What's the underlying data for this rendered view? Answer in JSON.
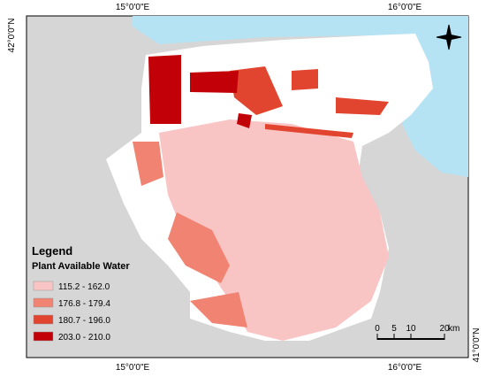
{
  "map": {
    "coordinate_labels": {
      "top": [
        "15°0'0\"E",
        "16°0'0\"E"
      ],
      "bottom": [
        "15°0'0\"E",
        "16°0'0\"E"
      ],
      "left": "42°0'0\"N",
      "right": "41°0'0\"N"
    },
    "legend": {
      "title": "Legend",
      "subtitle": "Plant Available Water",
      "items": [
        {
          "label": "115.2 - 162.0",
          "color": "#f9c4c4"
        },
        {
          "label": "176.8 - 179.4",
          "color": "#f08372"
        },
        {
          "label": "180.7 - 196.0",
          "color": "#e2452f"
        },
        {
          "label": "203.0 - 210.0",
          "color": "#c20008"
        }
      ]
    },
    "scale_bar": {
      "labels": [
        "0",
        "5",
        "10",
        "20",
        "km"
      ]
    }
  }
}
